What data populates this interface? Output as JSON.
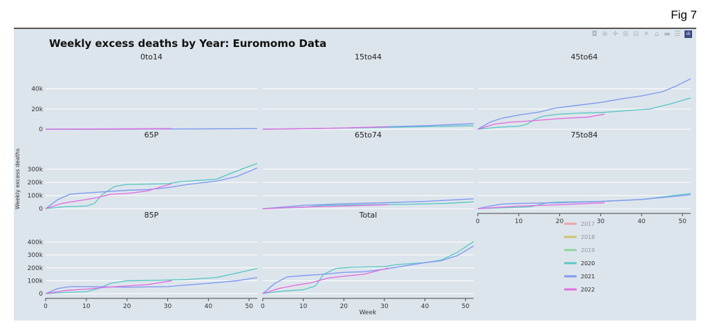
{
  "figure_label": "Fig 7",
  "toolbar": {
    "icons": [
      "camera-icon",
      "zoom-icon",
      "pan-icon",
      "zoom-in-icon",
      "zoom-out-icon",
      "autoscale-icon",
      "home-icon",
      "spike-icon",
      "compare-icon",
      "plotly-logo-icon"
    ],
    "glyphs": [
      "◘",
      "⊕",
      "✛",
      "⊞",
      "⊟",
      "✕",
      "⌂",
      "▬",
      "☰",
      "ılı"
    ]
  },
  "chart_data": {
    "type": "line",
    "title": "Weekly excess deaths by Year: Euromomo Data",
    "ylabel": "Weekly excess deaths",
    "xlabel": "Week",
    "legend_placement": "bottom-right",
    "colors": {
      "2017": "#efa3a3",
      "2018": "#cbc36a",
      "2019": "#8fd69a",
      "2020": "#5cc7c4",
      "2021": "#7f9af0",
      "2022": "#e26fe0"
    },
    "legend": [
      "2017",
      "2018",
      "2019",
      "2020",
      "2021",
      "2022"
    ],
    "plotted_series": [
      "2020",
      "2021",
      "2022"
    ],
    "panels": [
      {
        "title": "0to14",
        "ylim": [
          -2000,
          50000
        ],
        "yticks": [
          0,
          20000,
          40000
        ],
        "ytick_labels": [
          "0",
          "20k",
          "40k"
        ],
        "xticks": [],
        "xtick_labels": [],
        "series": {
          "2020": [
            [
              0,
              0
            ],
            [
              20,
              100
            ],
            [
              40,
              300
            ],
            [
              52,
              500
            ]
          ],
          "2021": [
            [
              0,
              0
            ],
            [
              20,
              100
            ],
            [
              40,
              300
            ],
            [
              52,
              500
            ]
          ],
          "2022": [
            [
              0,
              0
            ],
            [
              10,
              100
            ],
            [
              20,
              400
            ],
            [
              31,
              700
            ]
          ]
        }
      },
      {
        "title": "15to44",
        "ylim": [
          -2000,
          50000
        ],
        "yticks": [
          0,
          20000,
          40000
        ],
        "ytick_labels": [],
        "xticks": [],
        "xtick_labels": [],
        "series": {
          "2020": [
            [
              0,
              0
            ],
            [
              20,
              1000
            ],
            [
              40,
              2500
            ],
            [
              52,
              3500
            ]
          ],
          "2021": [
            [
              0,
              0
            ],
            [
              20,
              1200
            ],
            [
              40,
              3500
            ],
            [
              52,
              5500
            ]
          ],
          "2022": [
            [
              0,
              0
            ],
            [
              10,
              500
            ],
            [
              20,
              1200
            ],
            [
              31,
              2500
            ]
          ]
        }
      },
      {
        "title": "45to64",
        "ylim": [
          -2000,
          50000
        ],
        "yticks": [
          0,
          20000,
          40000
        ],
        "ytick_labels": [],
        "xticks": [],
        "xtick_labels": [],
        "series": {
          "2020": [
            [
              0,
              0
            ],
            [
              5,
              2000
            ],
            [
              10,
              3000
            ],
            [
              12,
              5000
            ],
            [
              14,
              10000
            ],
            [
              16,
              13000
            ],
            [
              20,
              15000
            ],
            [
              25,
              16000
            ],
            [
              30,
              16500
            ],
            [
              35,
              18000
            ],
            [
              42,
              20000
            ],
            [
              47,
              25000
            ],
            [
              52,
              31000
            ]
          ],
          "2021": [
            [
              0,
              0
            ],
            [
              3,
              7000
            ],
            [
              6,
              11000
            ],
            [
              10,
              14000
            ],
            [
              15,
              17000
            ],
            [
              19,
              21000
            ],
            [
              25,
              24000
            ],
            [
              30,
              26500
            ],
            [
              35,
              30000
            ],
            [
              40,
              33000
            ],
            [
              45,
              37000
            ],
            [
              48,
              42000
            ],
            [
              52,
              50000
            ]
          ],
          "2022": [
            [
              0,
              0
            ],
            [
              4,
              5000
            ],
            [
              8,
              7000
            ],
            [
              12,
              8000
            ],
            [
              20,
              10500
            ],
            [
              27,
              12000
            ],
            [
              31,
              15000
            ]
          ]
        }
      },
      {
        "title": "65P",
        "ylim": [
          -10000,
          395000
        ],
        "yticks": [
          0,
          100000,
          200000,
          300000
        ],
        "ytick_labels": [
          "0",
          "100k",
          "200k",
          "300k"
        ],
        "xticks": [],
        "xtick_labels": [],
        "series": {
          "2020": [
            [
              0,
              0
            ],
            [
              5,
              15000
            ],
            [
              10,
              20000
            ],
            [
              12,
              40000
            ],
            [
              14,
              110000
            ],
            [
              17,
              170000
            ],
            [
              20,
              185000
            ],
            [
              30,
              190000
            ],
            [
              33,
              205000
            ],
            [
              42,
              225000
            ],
            [
              46,
              275000
            ],
            [
              52,
              345000
            ]
          ],
          "2021": [
            [
              0,
              0
            ],
            [
              3,
              70000
            ],
            [
              6,
              110000
            ],
            [
              10,
              120000
            ],
            [
              15,
              130000
            ],
            [
              20,
              140000
            ],
            [
              25,
              145000
            ],
            [
              30,
              160000
            ],
            [
              35,
              185000
            ],
            [
              42,
              210000
            ],
            [
              47,
              245000
            ],
            [
              52,
              310000
            ]
          ],
          "2022": [
            [
              0,
              0
            ],
            [
              4,
              40000
            ],
            [
              8,
              60000
            ],
            [
              12,
              80000
            ],
            [
              16,
              110000
            ],
            [
              20,
              115000
            ],
            [
              25,
              135000
            ],
            [
              31,
              190000
            ]
          ]
        }
      },
      {
        "title": "65to74",
        "ylim": [
          -10000,
          395000
        ],
        "yticks": [
          0,
          100000,
          200000,
          300000
        ],
        "ytick_labels": [],
        "xticks": [],
        "xtick_labels": [],
        "series": {
          "2020": [
            [
              0,
              0
            ],
            [
              10,
              10000
            ],
            [
              15,
              25000
            ],
            [
              25,
              30000
            ],
            [
              35,
              33000
            ],
            [
              45,
              40000
            ],
            [
              52,
              52000
            ]
          ],
          "2021": [
            [
              0,
              0
            ],
            [
              10,
              25000
            ],
            [
              20,
              38000
            ],
            [
              30,
              45000
            ],
            [
              40,
              55000
            ],
            [
              52,
              75000
            ]
          ],
          "2022": [
            [
              0,
              0
            ],
            [
              10,
              12000
            ],
            [
              20,
              20000
            ],
            [
              31,
              30000
            ]
          ]
        }
      },
      {
        "title": "75to84",
        "ylim": [
          -10000,
          395000
        ],
        "yticks": [
          0,
          100000,
          200000,
          300000
        ],
        "ytick_labels": [],
        "xticks": [
          0,
          10,
          20,
          30,
          40,
          50
        ],
        "xtick_labels": [
          "0",
          "10",
          "20",
          "30",
          "40",
          "50"
        ],
        "series": {
          "2020": [
            [
              0,
              0
            ],
            [
              10,
              10000
            ],
            [
              13,
              15000
            ],
            [
              17,
              45000
            ],
            [
              20,
              50000
            ],
            [
              30,
              55000
            ],
            [
              40,
              70000
            ],
            [
              52,
              115000
            ]
          ],
          "2021": [
            [
              0,
              0
            ],
            [
              3,
              20000
            ],
            [
              6,
              35000
            ],
            [
              10,
              40000
            ],
            [
              20,
              45000
            ],
            [
              30,
              55000
            ],
            [
              40,
              70000
            ],
            [
              52,
              105000
            ]
          ],
          "2022": [
            [
              0,
              0
            ],
            [
              5,
              10000
            ],
            [
              10,
              20000
            ],
            [
              20,
              30000
            ],
            [
              31,
              45000
            ]
          ]
        }
      },
      {
        "title": "85P",
        "ylim": [
          -10000,
          440000
        ],
        "yticks": [
          0,
          100000,
          200000,
          300000,
          400000
        ],
        "ytick_labels": [
          "0",
          "100k",
          "200k",
          "300k",
          "400k"
        ],
        "xticks": [
          0,
          10,
          20,
          30,
          40,
          50
        ],
        "xtick_labels": [
          "0",
          "10",
          "20",
          "30",
          "40",
          "50"
        ],
        "series": {
          "2020": [
            [
              0,
              0
            ],
            [
              5,
              10000
            ],
            [
              10,
              15000
            ],
            [
              13,
              40000
            ],
            [
              16,
              80000
            ],
            [
              20,
              100000
            ],
            [
              30,
              105000
            ],
            [
              35,
              110000
            ],
            [
              42,
              125000
            ],
            [
              47,
              160000
            ],
            [
              52,
              195000
            ]
          ],
          "2021": [
            [
              0,
              0
            ],
            [
              3,
              40000
            ],
            [
              6,
              55000
            ],
            [
              10,
              55000
            ],
            [
              20,
              50000
            ],
            [
              30,
              55000
            ],
            [
              40,
              80000
            ],
            [
              47,
              100000
            ],
            [
              52,
              125000
            ]
          ],
          "2022": [
            [
              0,
              0
            ],
            [
              5,
              25000
            ],
            [
              10,
              35000
            ],
            [
              15,
              50000
            ],
            [
              20,
              60000
            ],
            [
              25,
              70000
            ],
            [
              31,
              100000
            ]
          ]
        }
      },
      {
        "title": "Total",
        "ylim": [
          -10000,
          440000
        ],
        "yticks": [
          0,
          100000,
          200000,
          300000,
          400000
        ],
        "ytick_labels": [],
        "xticks": [
          0,
          10,
          20,
          30,
          40,
          50
        ],
        "xtick_labels": [
          "0",
          "10",
          "20",
          "30",
          "40",
          "50"
        ],
        "series": {
          "2020": [
            [
              0,
              0
            ],
            [
              5,
              20000
            ],
            [
              10,
              30000
            ],
            [
              13,
              60000
            ],
            [
              15,
              150000
            ],
            [
              18,
              195000
            ],
            [
              22,
              205000
            ],
            [
              30,
              210000
            ],
            [
              33,
              225000
            ],
            [
              40,
              240000
            ],
            [
              44,
              260000
            ],
            [
              48,
              320000
            ],
            [
              52,
              405000
            ]
          ],
          "2021": [
            [
              0,
              0
            ],
            [
              3,
              80000
            ],
            [
              6,
              130000
            ],
            [
              10,
              140000
            ],
            [
              15,
              150000
            ],
            [
              20,
              165000
            ],
            [
              25,
              170000
            ],
            [
              30,
              190000
            ],
            [
              35,
              215000
            ],
            [
              40,
              240000
            ],
            [
              44,
              255000
            ],
            [
              48,
              295000
            ],
            [
              52,
              370000
            ]
          ],
          "2022": [
            [
              0,
              0
            ],
            [
              4,
              40000
            ],
            [
              8,
              65000
            ],
            [
              12,
              85000
            ],
            [
              16,
              120000
            ],
            [
              20,
              135000
            ],
            [
              25,
              150000
            ],
            [
              31,
              200000
            ]
          ]
        }
      }
    ]
  }
}
